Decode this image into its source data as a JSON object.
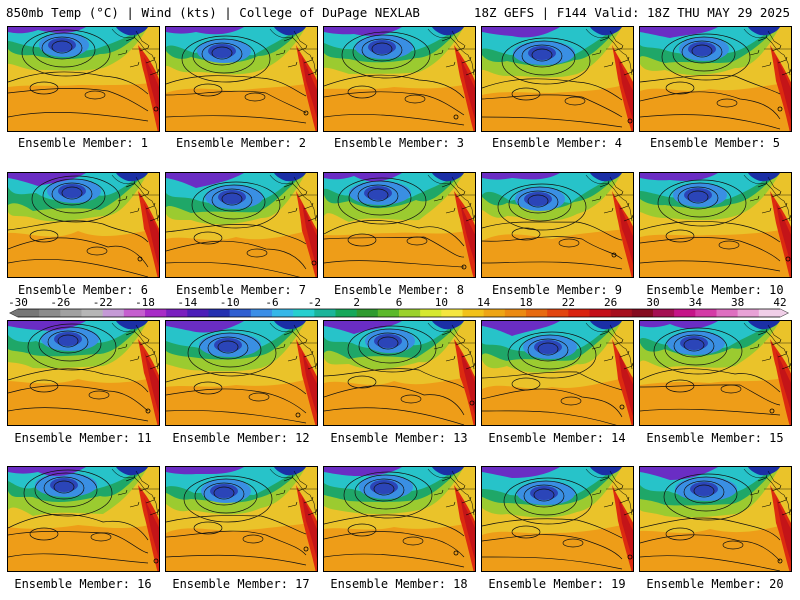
{
  "header": {
    "left": "850mb Temp (°C) | Wind (kts) | College of DuPage NEXLAB",
    "right": "18Z GEFS | F144 Valid: 18Z THU MAY 29 2025"
  },
  "colorbar": {
    "ticks": [
      "-30",
      "-26",
      "-22",
      "-18",
      "-14",
      "-10",
      "-6",
      "-2",
      "2",
      "6",
      "10",
      "14",
      "18",
      "22",
      "26",
      "30",
      "34",
      "38",
      "42"
    ],
    "colors": [
      "#777777",
      "#8c8c8c",
      "#a1a1a1",
      "#b6b6b6",
      "#c59ad6",
      "#c55ecf",
      "#a82bc7",
      "#7a1fbf",
      "#4b1db8",
      "#2430b0",
      "#2f5ed0",
      "#3b8ee6",
      "#35b7e8",
      "#26cfcf",
      "#1bb59a",
      "#16a85a",
      "#2f9a2f",
      "#5cb82b",
      "#9bd12c",
      "#d6e830",
      "#f5e640",
      "#f2c21a",
      "#eea515",
      "#eb8a12",
      "#e76a10",
      "#e2450f",
      "#d9230f",
      "#c4101a",
      "#a60f1e",
      "#850b20",
      "#a40f52",
      "#c51488",
      "#d43ba6",
      "#de6fc0",
      "#e8a2d6",
      "#f0cfe8"
    ]
  },
  "members": [
    {
      "label": "Ensemble Member: 1"
    },
    {
      "label": "Ensemble Member: 2"
    },
    {
      "label": "Ensemble Member: 3"
    },
    {
      "label": "Ensemble Member: 4"
    },
    {
      "label": "Ensemble Member: 5"
    },
    {
      "label": "Ensemble Member: 6"
    },
    {
      "label": "Ensemble Member: 7"
    },
    {
      "label": "Ensemble Member: 8"
    },
    {
      "label": "Ensemble Member: 9"
    },
    {
      "label": "Ensemble Member: 10"
    },
    {
      "label": "Ensemble Member: 11"
    },
    {
      "label": "Ensemble Member: 12"
    },
    {
      "label": "Ensemble Member: 13"
    },
    {
      "label": "Ensemble Member: 14"
    },
    {
      "label": "Ensemble Member: 15"
    },
    {
      "label": "Ensemble Member: 16"
    },
    {
      "label": "Ensemble Member: 17"
    },
    {
      "label": "Ensemble Member: 18"
    },
    {
      "label": "Ensemble Member: 19"
    },
    {
      "label": "Ensemble Member: 20"
    }
  ]
}
